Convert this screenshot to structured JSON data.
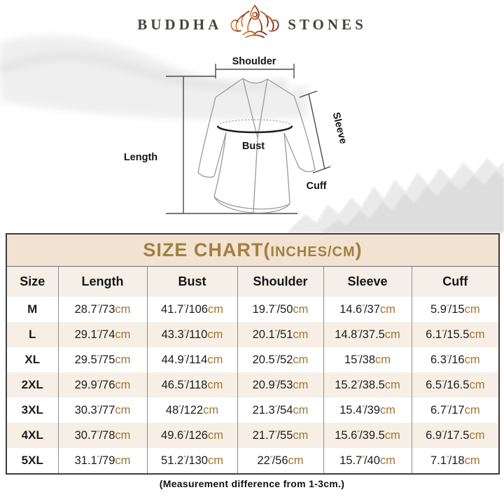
{
  "brand": {
    "left": "BUDDHA",
    "right": "STONES",
    "icon": "lotus-meditation-icon"
  },
  "diagram": {
    "labels": {
      "shoulder": "Shoulder",
      "length": "Length",
      "bust": "Bust",
      "sleeve": "Sleeve",
      "cuff": "Cuff"
    }
  },
  "size_chart": {
    "title_main": "SIZE CHART(",
    "title_sub": "INCHES/CM",
    "title_close": ")",
    "columns": [
      "Size",
      "Length",
      "Bust",
      "Shoulder",
      "Sleeve",
      "Cuff"
    ],
    "units": {
      "inch_mark": "″",
      "separator": "/",
      "cm_suffix": "cm"
    },
    "rows": [
      {
        "size": "M",
        "values": [
          [
            "28.7",
            "73"
          ],
          [
            "41.7",
            "106"
          ],
          [
            "19.7",
            "50"
          ],
          [
            "14.6",
            "37"
          ],
          [
            "5.9",
            "15"
          ]
        ]
      },
      {
        "size": "L",
        "values": [
          [
            "29.1",
            "74"
          ],
          [
            "43.3",
            "110"
          ],
          [
            "20.1",
            "51"
          ],
          [
            "14.8",
            "37.5"
          ],
          [
            "6.1",
            "15.5"
          ]
        ]
      },
      {
        "size": "XL",
        "values": [
          [
            "29.5",
            "75"
          ],
          [
            "44.9",
            "114"
          ],
          [
            "20.5",
            "52"
          ],
          [
            "15",
            "38"
          ],
          [
            "6.3",
            "16"
          ]
        ]
      },
      {
        "size": "2XL",
        "values": [
          [
            "29.9",
            "76"
          ],
          [
            "46.5",
            "118"
          ],
          [
            "20.9",
            "53"
          ],
          [
            "15.2",
            "38.5"
          ],
          [
            "6.5",
            "16.5"
          ]
        ]
      },
      {
        "size": "3XL",
        "values": [
          [
            "30.3",
            "77"
          ],
          [
            "48",
            "122"
          ],
          [
            "21.3",
            "54"
          ],
          [
            "15.4",
            "39"
          ],
          [
            "6.7",
            "17"
          ]
        ]
      },
      {
        "size": "4XL",
        "values": [
          [
            "30.7",
            "78"
          ],
          [
            "49.6",
            "126"
          ],
          [
            "21.7",
            "55"
          ],
          [
            "15.6",
            "39.5"
          ],
          [
            "6.9",
            "17.5"
          ]
        ]
      },
      {
        "size": "5XL",
        "values": [
          [
            "31.1",
            "79"
          ],
          [
            "51.2",
            "130"
          ],
          [
            "22",
            "56"
          ],
          [
            "15.7",
            "40"
          ],
          [
            "7.1",
            "18"
          ]
        ]
      }
    ]
  },
  "footer": {
    "note": "(Measurement difference from 1-3cm.)"
  },
  "colors": {
    "accent_gold": "#a1803f",
    "unit_gold": "#a1752e",
    "band_bg": "#f2e2d2",
    "header_row_bg": "#f6efe8",
    "alt_row_bg": "#f7efe6",
    "border_dark": "#3d3d3d",
    "grid_line": "#8d8d8d",
    "brand_text": "#47423d",
    "lotus_gradient_start": "#d4853f",
    "lotus_gradient_end": "#7d2a1c"
  }
}
